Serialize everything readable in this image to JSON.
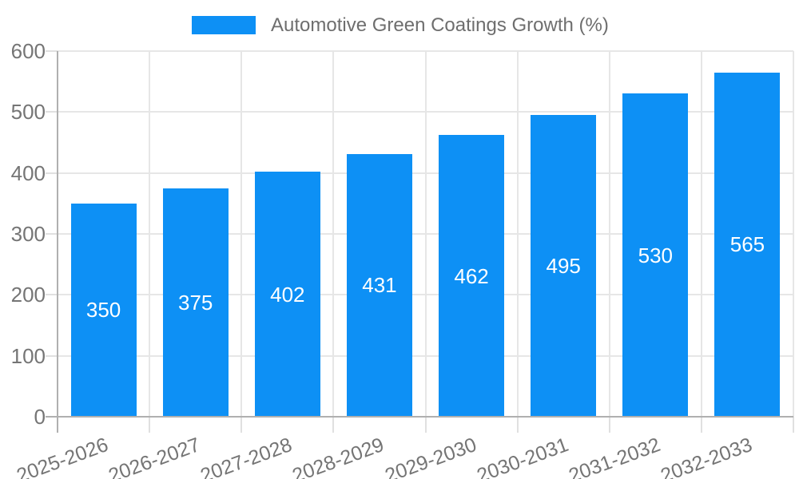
{
  "chart_data": {
    "type": "bar",
    "title": "Automotive Green Coatings Growth (%)",
    "legend": {
      "position": "top",
      "entries": [
        "Automotive Green Coatings Growth (%)"
      ]
    },
    "categories": [
      "2025-2026",
      "2026-2027",
      "2027-2028",
      "2028-2029",
      "2029-2030",
      "2030-2031",
      "2031-2032",
      "2032-2033"
    ],
    "series": [
      {
        "name": "Automotive Green Coatings Growth (%)",
        "values": [
          350,
          375,
          402,
          431,
          462,
          495,
          530,
          565
        ]
      }
    ],
    "value_labels": [
      "350",
      "375",
      "402",
      "431",
      "462",
      "495",
      "530",
      "565"
    ],
    "xlabel": "",
    "ylabel": "",
    "ylim": [
      0,
      600
    ],
    "y_ticks": [
      0,
      100,
      200,
      300,
      400,
      500,
      600
    ],
    "grid": true,
    "x_tick_rotation_deg": -20,
    "colors": {
      "bar": "#0d90f5",
      "value_label": "#ffffff",
      "axis_text": "#757575",
      "legend_text": "#6e6e6e",
      "gridline": "#e6e6e6",
      "tick": "#e0e0e0",
      "axis_line": "#b0b0b0",
      "background": "#ffffff"
    }
  }
}
